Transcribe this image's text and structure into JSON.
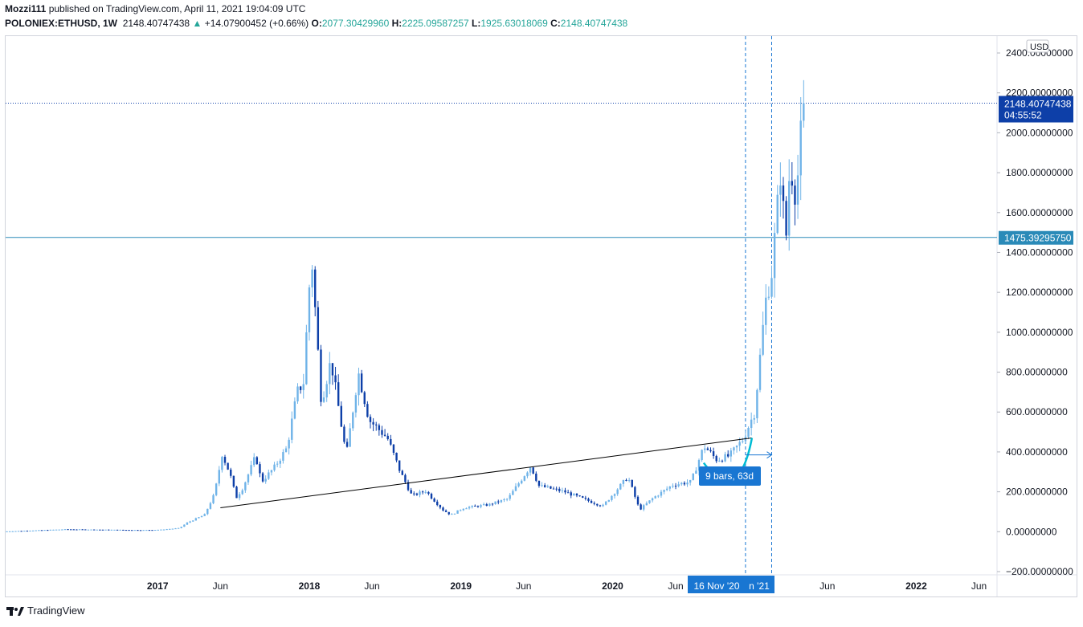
{
  "header": {
    "author": "Mozzi111",
    "published_text": "published on TradingView.com, April 11, 2021 19:04:09 UTC",
    "symbol": "POLONIEX:ETHUSD, 1W",
    "last": "2148.40747438",
    "change_arrow": "▲",
    "change": "+14.07900452 (+0.66%)",
    "o_label": "O:",
    "o_value": "2077.30429960",
    "h_label": "H:",
    "h_value": "2225.09587257",
    "l_label": "L:",
    "l_value": "1925.63018069",
    "c_label": "C:",
    "c_value": "2148.40747438"
  },
  "footer": {
    "brand": "TradingView"
  },
  "colors": {
    "up": "#1e53e5",
    "down": "#0d3fa8",
    "light": "#6fb3e8",
    "accent": "#1976d2",
    "hline": "#2a8ab8",
    "text": "#131722"
  },
  "chart_data": {
    "type": "candlestick",
    "currency_label": "USD",
    "y_range": [
      -200,
      2400
    ],
    "y_ticks": [
      {
        "v": 2400,
        "label": "2400.00000000"
      },
      {
        "v": 2200,
        "label": "2200.00000000"
      },
      {
        "v": 2000,
        "label": "2000.00000000"
      },
      {
        "v": 1800,
        "label": "1800.00000000"
      },
      {
        "v": 1600,
        "label": "1600.00000000"
      },
      {
        "v": 1400,
        "label": "1400.00000000"
      },
      {
        "v": 1200,
        "label": "1200.00000000"
      },
      {
        "v": 1000,
        "label": "1000.00000000"
      },
      {
        "v": 800,
        "label": "800.00000000"
      },
      {
        "v": 600,
        "label": "600.00000000"
      },
      {
        "v": 400,
        "label": "400.00000000"
      },
      {
        "v": 200,
        "label": "200.00000000"
      },
      {
        "v": 0,
        "label": "0.00000000"
      },
      {
        "v": -200,
        "label": "−200.00000000"
      }
    ],
    "x_range": [
      "2016-01-01",
      "2022-05-31"
    ],
    "x_ticks": [
      {
        "date": "2017-01-01",
        "label": "2017",
        "bold": true
      },
      {
        "date": "2017-06-01",
        "label": "Jun",
        "bold": false
      },
      {
        "date": "2018-01-01",
        "label": "2018",
        "bold": true
      },
      {
        "date": "2018-06-01",
        "label": "Jun",
        "bold": false
      },
      {
        "date": "2019-01-01",
        "label": "2019",
        "bold": true
      },
      {
        "date": "2019-06-01",
        "label": "Jun",
        "bold": false
      },
      {
        "date": "2020-01-01",
        "label": "2020",
        "bold": true
      },
      {
        "date": "2020-06-01",
        "label": "Jun",
        "bold": false
      },
      {
        "date": "2021-06-01",
        "label": "Jun",
        "bold": false
      },
      {
        "date": "2022-01-01",
        "label": "2022",
        "bold": true
      },
      {
        "date": "2022-06-01",
        "label": "Jun",
        "bold": false
      }
    ],
    "price_series": [
      [
        "2016-01-01",
        1
      ],
      [
        "2016-06-01",
        12
      ],
      [
        "2016-09-01",
        10
      ],
      [
        "2016-12-01",
        8
      ],
      [
        "2017-01-15",
        10
      ],
      [
        "2017-03-01",
        18
      ],
      [
        "2017-03-20",
        45
      ],
      [
        "2017-05-01",
        85
      ],
      [
        "2017-05-25",
        190
      ],
      [
        "2017-06-12",
        390
      ],
      [
        "2017-07-01",
        290
      ],
      [
        "2017-07-16",
        170
      ],
      [
        "2017-08-01",
        220
      ],
      [
        "2017-09-01",
        380
      ],
      [
        "2017-09-15",
        250
      ],
      [
        "2017-10-15",
        320
      ],
      [
        "2017-11-15",
        420
      ],
      [
        "2017-12-10",
        700
      ],
      [
        "2017-12-25",
        750
      ],
      [
        "2018-01-13",
        1400
      ],
      [
        "2018-02-06",
        650
      ],
      [
        "2018-03-01",
        860
      ],
      [
        "2018-04-07",
        380
      ],
      [
        "2018-05-06",
        800
      ],
      [
        "2018-06-01",
        560
      ],
      [
        "2018-07-15",
        470
      ],
      [
        "2018-08-15",
        300
      ],
      [
        "2018-09-12",
        180
      ],
      [
        "2018-10-15",
        205
      ],
      [
        "2018-11-25",
        110
      ],
      [
        "2018-12-15",
        84
      ],
      [
        "2019-01-15",
        120
      ],
      [
        "2019-03-15",
        135
      ],
      [
        "2019-05-01",
        165
      ],
      [
        "2019-06-25",
        330
      ],
      [
        "2019-07-15",
        230
      ],
      [
        "2019-09-15",
        200
      ],
      [
        "2019-12-15",
        128
      ],
      [
        "2020-02-14",
        275
      ],
      [
        "2020-03-13",
        110
      ],
      [
        "2020-04-15",
        170
      ],
      [
        "2020-06-01",
        235
      ],
      [
        "2020-07-15",
        250
      ],
      [
        "2020-08-15",
        430
      ],
      [
        "2020-09-15",
        360
      ],
      [
        "2020-10-15",
        380
      ],
      [
        "2020-11-16",
        460
      ],
      [
        "2020-12-15",
        600
      ],
      [
        "2021-01-10",
        1150
      ],
      [
        "2021-01-25",
        1300
      ],
      [
        "2021-02-15",
        1800
      ],
      [
        "2021-02-28",
        1450
      ],
      [
        "2021-03-10",
        1850
      ],
      [
        "2021-03-25",
        1680
      ],
      [
        "2021-04-11",
        2148
      ]
    ],
    "price_tags": [
      {
        "value": 2148.40747438,
        "label": "2148.40747438",
        "sublabel": "04:55:52"
      },
      {
        "value": 1475.3929575,
        "label": "1475.39295750"
      }
    ],
    "horizontal_line": 1475.3929575,
    "trendline": [
      [
        "2017-06-01",
        120
      ],
      [
        "2020-12-01",
        470
      ]
    ],
    "vlines": [
      "2020-11-16",
      "2021-01-18"
    ],
    "x_badge_label": "16 Nov '20",
    "x_badge_label2": "n '21",
    "measure_label": "9 bars, 63d"
  }
}
